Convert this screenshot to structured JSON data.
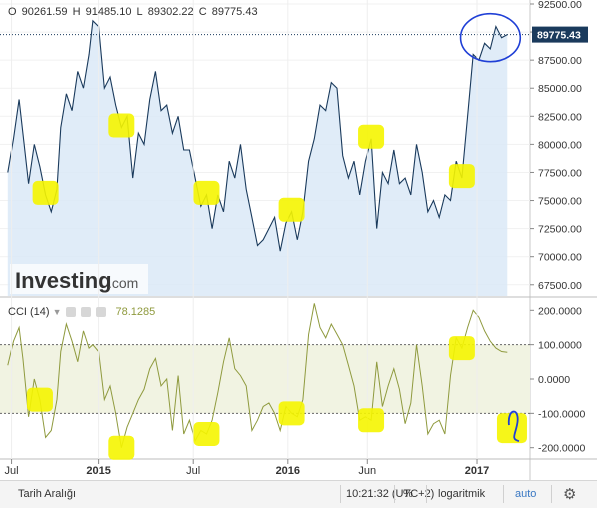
{
  "ohlc": {
    "o_label": "O",
    "o_value": "90261.59",
    "h_label": "H",
    "h_value": "91485.10",
    "l_label": "L",
    "l_value": "89302.22",
    "c_label": "C",
    "c_value": "89775.43"
  },
  "cci": {
    "label": "CCI (14)",
    "value": "78.1285"
  },
  "bottom": {
    "range_label": "Tarih Aralığı",
    "time": "10:21:32 (UTC+2)",
    "percent": "%",
    "log": "logaritmik",
    "auto": "auto"
  },
  "colors": {
    "price_line": "#1a3a5c",
    "price_fill": "#dbe9f7",
    "cci_line": "#8f9a3e",
    "cci_band": "#f1f3e2",
    "highlight": "#f5f500",
    "annotation": "#1f3fd6",
    "last_price_bg": "#1a3a5c"
  },
  "chart_data": [
    {
      "type": "area",
      "title": "",
      "x_tick_labels": [
        "Jul",
        "2015",
        "Jul",
        "2016",
        "Jun",
        "2017"
      ],
      "x_ticks": [
        2014.54,
        2015.0,
        2015.5,
        2016.0,
        2016.42,
        2017.0
      ],
      "ylim": [
        66500,
        92500
      ],
      "y_tick_labels": [
        "67500.00",
        "70000.00",
        "72500.00",
        "75000.00",
        "77500.00",
        "80000.00",
        "82500.00",
        "85000.00",
        "87500.00",
        "90000.00",
        "92500.00"
      ],
      "y_ticks": [
        67500,
        70000,
        72500,
        75000,
        77500,
        80000,
        82500,
        85000,
        87500,
        90000,
        92500
      ],
      "last_price": "89775.43",
      "last_price_value": 89775.43,
      "series": [
        {
          "x": [
            2014.52,
            2014.55,
            2014.58,
            2014.6,
            2014.63,
            2014.66,
            2014.69,
            2014.72,
            2014.75,
            2014.78,
            2014.8,
            2014.83,
            2014.86,
            2014.89,
            2014.92,
            2014.95,
            2014.97,
            2015.0,
            2015.03,
            2015.06,
            2015.09,
            2015.12,
            2015.15,
            2015.18,
            2015.21,
            2015.24,
            2015.27,
            2015.3,
            2015.33,
            2015.36,
            2015.39,
            2015.42,
            2015.45,
            2015.48,
            2015.51,
            2015.54,
            2015.57,
            2015.6,
            2015.63,
            2015.66,
            2015.69,
            2015.72,
            2015.75,
            2015.78,
            2015.81,
            2015.84,
            2015.87,
            2015.9,
            2015.93,
            2015.96,
            2015.99,
            2016.02,
            2016.05,
            2016.08,
            2016.11,
            2016.14,
            2016.17,
            2016.2,
            2016.23,
            2016.26,
            2016.29,
            2016.32,
            2016.35,
            2016.38,
            2016.41,
            2016.44,
            2016.47,
            2016.5,
            2016.53,
            2016.56,
            2016.59,
            2016.62,
            2016.65,
            2016.68,
            2016.71,
            2016.74,
            2016.77,
            2016.8,
            2016.83,
            2016.86,
            2016.89,
            2016.92,
            2016.95,
            2016.98,
            2017.01,
            2017.04,
            2017.07,
            2017.1,
            2017.13,
            2017.16
          ],
          "y": [
            77500,
            80500,
            84000,
            81000,
            76500,
            80000,
            78000,
            75500,
            74000,
            76000,
            81500,
            84500,
            83000,
            86500,
            85000,
            88000,
            91000,
            90500,
            85000,
            86000,
            83500,
            81500,
            82500,
            77000,
            81000,
            80000,
            84000,
            86500,
            83000,
            83500,
            81000,
            82500,
            79500,
            79500,
            77000,
            74500,
            75500,
            72500,
            75500,
            74000,
            78500,
            77000,
            80000,
            76000,
            73500,
            71000,
            71500,
            72500,
            73500,
            70500,
            73000,
            74000,
            71500,
            74000,
            78500,
            80500,
            83500,
            83000,
            85500,
            85000,
            79000,
            77000,
            78500,
            75500,
            78500,
            80500,
            72500,
            77500,
            76500,
            79500,
            76500,
            77000,
            75500,
            80000,
            77500,
            74000,
            75000,
            73500,
            75500,
            75000,
            78500,
            77000,
            82500,
            88000,
            87500,
            89000,
            88500,
            90500,
            89500,
            89775
          ]
        }
      ],
      "highlights_at_x": [
        2014.72,
        2015.12,
        2015.57,
        2016.02,
        2016.44,
        2016.92
      ],
      "annotation_circle_x": [
        2016.95,
        2017.16
      ]
    },
    {
      "type": "line",
      "title": "CCI (14)",
      "ylim": [
        -230,
        230
      ],
      "y_tick_labels": [
        "200.0000",
        "100.0000",
        "0.0000",
        "-100.0000",
        "-200.0000"
      ],
      "y_ticks": [
        200,
        100,
        0,
        -100,
        -200
      ],
      "band": [
        -100,
        100
      ],
      "series": [
        {
          "x": [
            2014.52,
            2014.55,
            2014.58,
            2014.6,
            2014.63,
            2014.66,
            2014.69,
            2014.72,
            2014.75,
            2014.78,
            2014.8,
            2014.83,
            2014.86,
            2014.89,
            2014.92,
            2014.95,
            2014.97,
            2015.0,
            2015.03,
            2015.06,
            2015.09,
            2015.12,
            2015.15,
            2015.18,
            2015.21,
            2015.24,
            2015.27,
            2015.3,
            2015.33,
            2015.36,
            2015.39,
            2015.42,
            2015.45,
            2015.48,
            2015.51,
            2015.54,
            2015.57,
            2015.6,
            2015.63,
            2015.66,
            2015.69,
            2015.72,
            2015.75,
            2015.78,
            2015.81,
            2015.84,
            2015.87,
            2015.9,
            2015.93,
            2015.96,
            2015.99,
            2016.02,
            2016.05,
            2016.08,
            2016.11,
            2016.14,
            2016.17,
            2016.2,
            2016.23,
            2016.26,
            2016.29,
            2016.32,
            2016.35,
            2016.38,
            2016.41,
            2016.44,
            2016.47,
            2016.5,
            2016.53,
            2016.56,
            2016.59,
            2016.62,
            2016.65,
            2016.68,
            2016.71,
            2016.74,
            2016.77,
            2016.8,
            2016.83,
            2016.86,
            2016.89,
            2016.92,
            2016.95,
            2016.98,
            2017.01,
            2017.04,
            2017.07,
            2017.1,
            2017.13,
            2017.16
          ],
          "y": [
            40,
            110,
            150,
            60,
            -110,
            0,
            -60,
            -170,
            -150,
            -60,
            80,
            160,
            110,
            50,
            140,
            90,
            100,
            80,
            -60,
            -20,
            -100,
            -200,
            -140,
            -100,
            -60,
            -30,
            30,
            60,
            -20,
            0,
            -150,
            10,
            -160,
            -120,
            -180,
            -150,
            -160,
            -120,
            -40,
            50,
            120,
            30,
            10,
            -20,
            -150,
            -120,
            -80,
            -70,
            -100,
            -150,
            -80,
            -100,
            -110,
            -60,
            130,
            220,
            150,
            120,
            160,
            130,
            100,
            40,
            -20,
            -120,
            -110,
            -120,
            50,
            -80,
            -20,
            30,
            -30,
            -130,
            -70,
            100,
            -20,
            -160,
            -130,
            -120,
            -160,
            10,
            120,
            90,
            150,
            200,
            180,
            140,
            110,
            90,
            80,
            78
          ]
        }
      ],
      "highlights_at_x": [
        2014.69,
        2015.12,
        2015.57,
        2016.02,
        2016.44,
        2016.92
      ],
      "annotation_hook_x": 2017.19
    }
  ]
}
